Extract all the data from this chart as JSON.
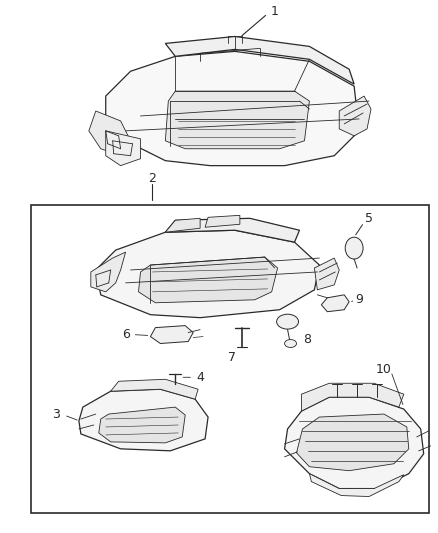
{
  "background_color": "#ffffff",
  "line_color": "#2a2a2a",
  "fig_width": 4.38,
  "fig_height": 5.33,
  "dpi": 100,
  "image_b64": ""
}
